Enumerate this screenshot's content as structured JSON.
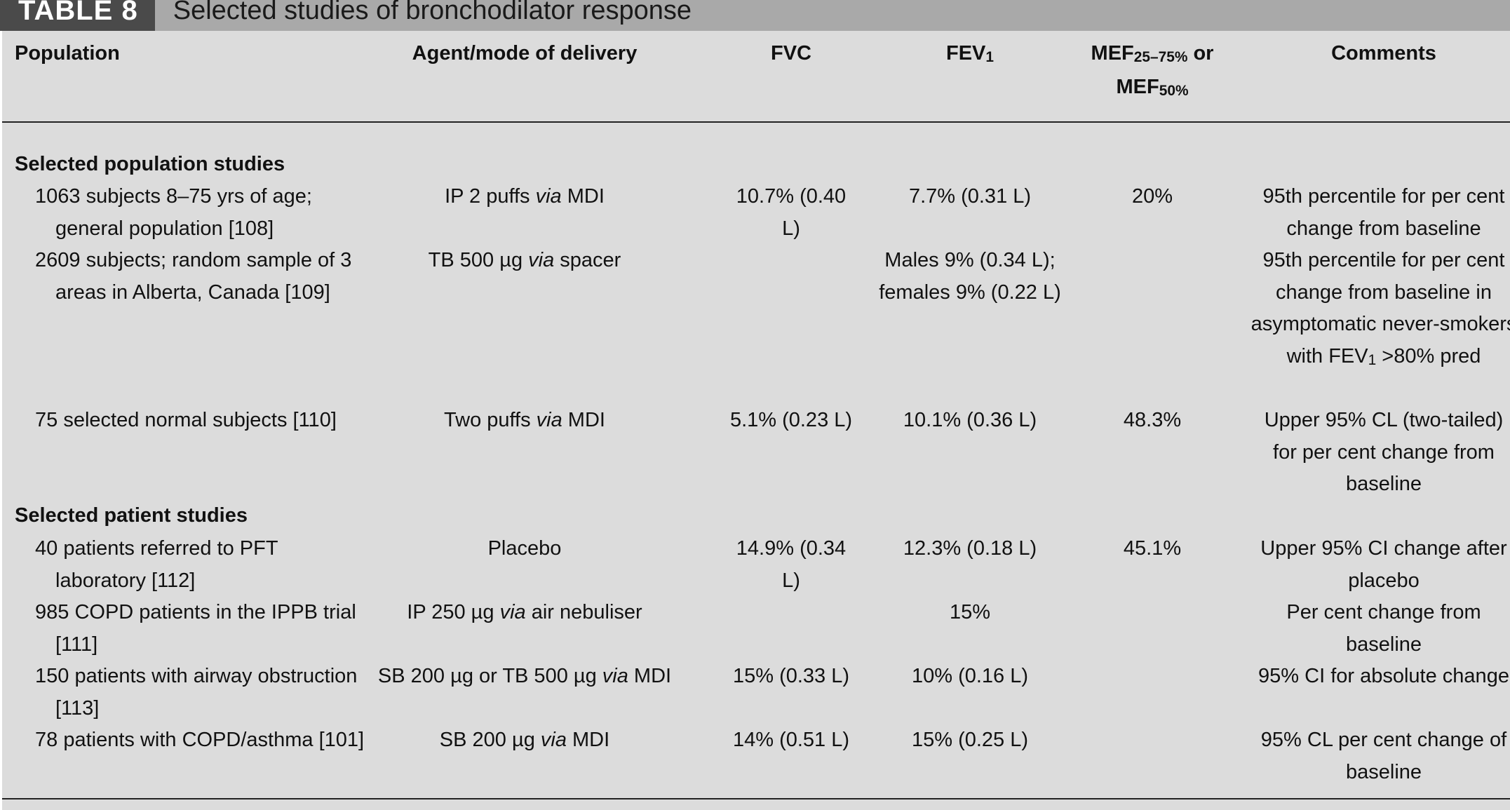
{
  "title": {
    "label": "TABLE 8",
    "text": "Selected studies of bronchodilator response"
  },
  "headers": {
    "population": "Population",
    "agent": "Agent/mode of delivery",
    "fvc": "FVC",
    "fev_main": "FEV",
    "fev_sub": "1",
    "mef_a": "MEF",
    "mef_a_sub": "25–75%",
    "mef_or": " or",
    "mef_b": "MEF",
    "mef_b_sub": "50%",
    "comments": "Comments"
  },
  "sections": {
    "population": "Selected population studies",
    "patient": "Selected patient studies"
  },
  "rows": [
    {
      "population": "1063 subjects 8–75 yrs of age; general population [108]",
      "agent_pre": "IP 2 puffs ",
      "agent_via": "via",
      "agent_post": " MDI",
      "fvc": "10.7% (0.40 L)",
      "fev": "7.7% (0.31 L)",
      "mef": "20%",
      "comments": "95th percentile for per cent change from baseline"
    },
    {
      "population": "2609 subjects; random sample of 3 areas in Alberta, Canada [109]",
      "agent_pre": "TB 500 µg ",
      "agent_via": "via",
      "agent_post": " spacer",
      "fvc": "",
      "fev": "Males 9% (0.34 L); females 9% (0.22 L)",
      "mef": "",
      "comments_pre": "95th percentile for per cent change from baseline in asymptomatic never-smokers with FEV",
      "comments_sub": "1",
      "comments_post": " >80% pred"
    },
    {
      "population": "75 selected normal subjects [110]",
      "agent_pre": "Two puffs ",
      "agent_via": "via",
      "agent_post": " MDI",
      "fvc": "5.1% (0.23 L)",
      "fev": "10.1% (0.36 L)",
      "mef": "48.3%",
      "comments": "Upper 95% CL (two-tailed) for per cent change from baseline"
    },
    {
      "population": "40 patients referred to PFT laboratory [112]",
      "agent_pre": "Placebo",
      "agent_via": "",
      "agent_post": "",
      "fvc": "14.9% (0.34 L)",
      "fev": "12.3% (0.18 L)",
      "mef": "45.1%",
      "comments": "Upper 95% CI change after placebo"
    },
    {
      "population": "985 COPD patients in the IPPB trial [111]",
      "agent_pre": "IP 250 µg ",
      "agent_via": "via",
      "agent_post": " air nebuliser",
      "fvc": "",
      "fev": "15%",
      "mef": "",
      "comments": "Per cent change from baseline"
    },
    {
      "population": "150 patients with airway obstruction [113]",
      "agent_pre": "SB 200 µg or TB 500 µg ",
      "agent_via": "via",
      "agent_post": " MDI",
      "fvc": "15% (0.33 L)",
      "fev": "10% (0.16 L)",
      "mef": "",
      "comments": "95% CI for absolute change"
    },
    {
      "population": "78 patients with COPD/asthma [101]",
      "agent_pre": "SB 200 µg ",
      "agent_via": "via",
      "agent_post": " MDI",
      "fvc": "14% (0.51 L)",
      "fev": "15% (0.25 L)",
      "mef": "",
      "comments": "95% CL per cent change of baseline"
    }
  ]
}
